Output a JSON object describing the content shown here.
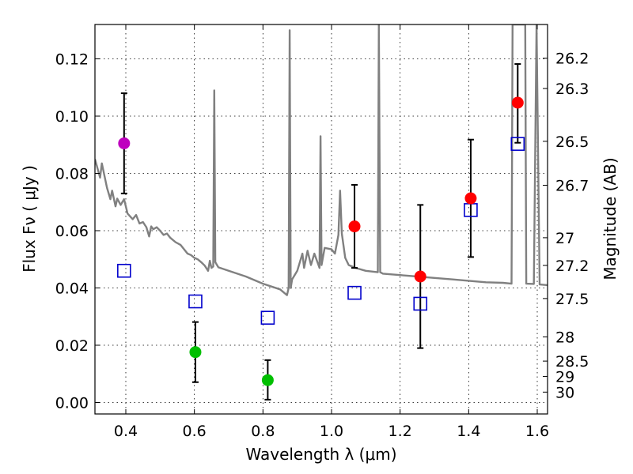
{
  "chart_data": {
    "type": "scatter",
    "title": "",
    "xlabel": "Wavelength  λ (μm)",
    "ylabel": "Flux  Fν  ( μJy )",
    "ylabel_right": "Magnitude (AB)",
    "xlim": [
      0.31,
      1.63
    ],
    "ylim": [
      -0.004,
      0.132
    ],
    "grid": true,
    "x_ticks": [
      0.4,
      0.6,
      0.8,
      1.0,
      1.2,
      1.4,
      1.6
    ],
    "x_tick_labels": [
      "0.4",
      "0.6",
      "0.8",
      "1.0",
      "1.2",
      "1.4",
      "1.6"
    ],
    "y_ticks": [
      0.0,
      0.02,
      0.04,
      0.06,
      0.08,
      0.1,
      0.12
    ],
    "y_tick_labels": [
      "0.00",
      "0.02",
      "0.04",
      "0.06",
      "0.08",
      "0.10",
      "0.12"
    ],
    "right_axis_magnitudes": [
      26.2,
      26.3,
      26.5,
      26.7,
      27,
      27.2,
      27.5,
      28,
      28.5,
      29,
      30
    ],
    "right_axis_labels": [
      "26.2",
      "26.3",
      "26.5",
      "26.7",
      "27",
      "27.2",
      "27.5",
      "28",
      "28.5",
      "29",
      "30"
    ],
    "colors": {
      "detection": "#ff0000",
      "non_detection": "#00bf00",
      "uv_point": "#bf00bf",
      "model": "#0000cc",
      "sed": "#808080",
      "errorbar": "#000000"
    },
    "observed": [
      {
        "x": 0.395,
        "y": 0.0905,
        "err_low": 0.0175,
        "err_high": 0.0175,
        "kind": "uv_point"
      },
      {
        "x": 0.603,
        "y": 0.0176,
        "err_low": 0.0105,
        "err_high": 0.0105,
        "kind": "non_detection"
      },
      {
        "x": 0.814,
        "y": 0.0078,
        "err_low": 0.0068,
        "err_high": 0.007,
        "kind": "non_detection"
      },
      {
        "x": 1.067,
        "y": 0.0615,
        "err_low": 0.0145,
        "err_high": 0.0145,
        "kind": "detection"
      },
      {
        "x": 1.259,
        "y": 0.044,
        "err_low": 0.025,
        "err_high": 0.025,
        "kind": "detection"
      },
      {
        "x": 1.406,
        "y": 0.0713,
        "err_low": 0.0205,
        "err_high": 0.0205,
        "kind": "detection"
      },
      {
        "x": 1.543,
        "y": 0.1047,
        "err_low": 0.014,
        "err_high": 0.0135,
        "kind": "detection"
      }
    ],
    "model_points": [
      {
        "x": 0.395,
        "y": 0.046
      },
      {
        "x": 0.603,
        "y": 0.0353
      },
      {
        "x": 0.814,
        "y": 0.0296
      },
      {
        "x": 1.067,
        "y": 0.0383
      },
      {
        "x": 1.259,
        "y": 0.0345
      },
      {
        "x": 1.406,
        "y": 0.0672
      },
      {
        "x": 1.543,
        "y": 0.0903
      }
    ],
    "sed_curve": [
      [
        0.31,
        0.085
      ],
      [
        0.325,
        0.0785
      ],
      [
        0.33,
        0.0835
      ],
      [
        0.345,
        0.075
      ],
      [
        0.355,
        0.071
      ],
      [
        0.36,
        0.074
      ],
      [
        0.37,
        0.0685
      ],
      [
        0.375,
        0.0712
      ],
      [
        0.385,
        0.069
      ],
      [
        0.395,
        0.071
      ],
      [
        0.405,
        0.066
      ],
      [
        0.42,
        0.064
      ],
      [
        0.43,
        0.0655
      ],
      [
        0.44,
        0.0625
      ],
      [
        0.45,
        0.063
      ],
      [
        0.46,
        0.0612
      ],
      [
        0.468,
        0.058
      ],
      [
        0.474,
        0.0615
      ],
      [
        0.48,
        0.0605
      ],
      [
        0.49,
        0.0612
      ],
      [
        0.5,
        0.06
      ],
      [
        0.51,
        0.0585
      ],
      [
        0.52,
        0.059
      ],
      [
        0.53,
        0.0575
      ],
      [
        0.545,
        0.056
      ],
      [
        0.56,
        0.055
      ],
      [
        0.57,
        0.0535
      ],
      [
        0.58,
        0.052
      ],
      [
        0.59,
        0.0515
      ],
      [
        0.6,
        0.0505
      ],
      [
        0.61,
        0.05
      ],
      [
        0.62,
        0.049
      ],
      [
        0.63,
        0.0478
      ],
      [
        0.64,
        0.046
      ],
      [
        0.645,
        0.0495
      ],
      [
        0.65,
        0.047
      ],
      [
        0.655,
        0.0475
      ],
      [
        0.658,
        0.109
      ],
      [
        0.661,
        0.049
      ],
      [
        0.67,
        0.0472
      ],
      [
        0.7,
        0.046
      ],
      [
        0.75,
        0.044
      ],
      [
        0.8,
        0.0415
      ],
      [
        0.85,
        0.0395
      ],
      [
        0.87,
        0.0375
      ],
      [
        0.875,
        0.04
      ],
      [
        0.878,
        0.13
      ],
      [
        0.881,
        0.04
      ],
      [
        0.885,
        0.043
      ],
      [
        0.9,
        0.046
      ],
      [
        0.915,
        0.052
      ],
      [
        0.92,
        0.047
      ],
      [
        0.93,
        0.053
      ],
      [
        0.94,
        0.048
      ],
      [
        0.95,
        0.052
      ],
      [
        0.965,
        0.047
      ],
      [
        0.968,
        0.093
      ],
      [
        0.971,
        0.048
      ],
      [
        0.98,
        0.054
      ],
      [
        1.0,
        0.0535
      ],
      [
        1.01,
        0.052
      ],
      [
        1.02,
        0.0585
      ],
      [
        1.025,
        0.074
      ],
      [
        1.03,
        0.059
      ],
      [
        1.04,
        0.0505
      ],
      [
        1.05,
        0.048
      ],
      [
        1.07,
        0.047
      ],
      [
        1.1,
        0.046
      ],
      [
        1.135,
        0.0455
      ],
      [
        1.138,
        0.132
      ],
      [
        1.142,
        0.0455
      ],
      [
        1.15,
        0.045
      ],
      [
        1.2,
        0.0445
      ],
      [
        1.25,
        0.044
      ],
      [
        1.3,
        0.0435
      ],
      [
        1.35,
        0.043
      ],
      [
        1.4,
        0.0425
      ],
      [
        1.45,
        0.042
      ],
      [
        1.5,
        0.0418
      ],
      [
        1.525,
        0.0415
      ],
      [
        1.528,
        0.132
      ],
      [
        1.565,
        0.132
      ],
      [
        1.568,
        0.0415
      ],
      [
        1.59,
        0.0414
      ],
      [
        1.598,
        0.132
      ],
      [
        1.607,
        0.0412
      ],
      [
        1.63,
        0.041
      ]
    ]
  }
}
